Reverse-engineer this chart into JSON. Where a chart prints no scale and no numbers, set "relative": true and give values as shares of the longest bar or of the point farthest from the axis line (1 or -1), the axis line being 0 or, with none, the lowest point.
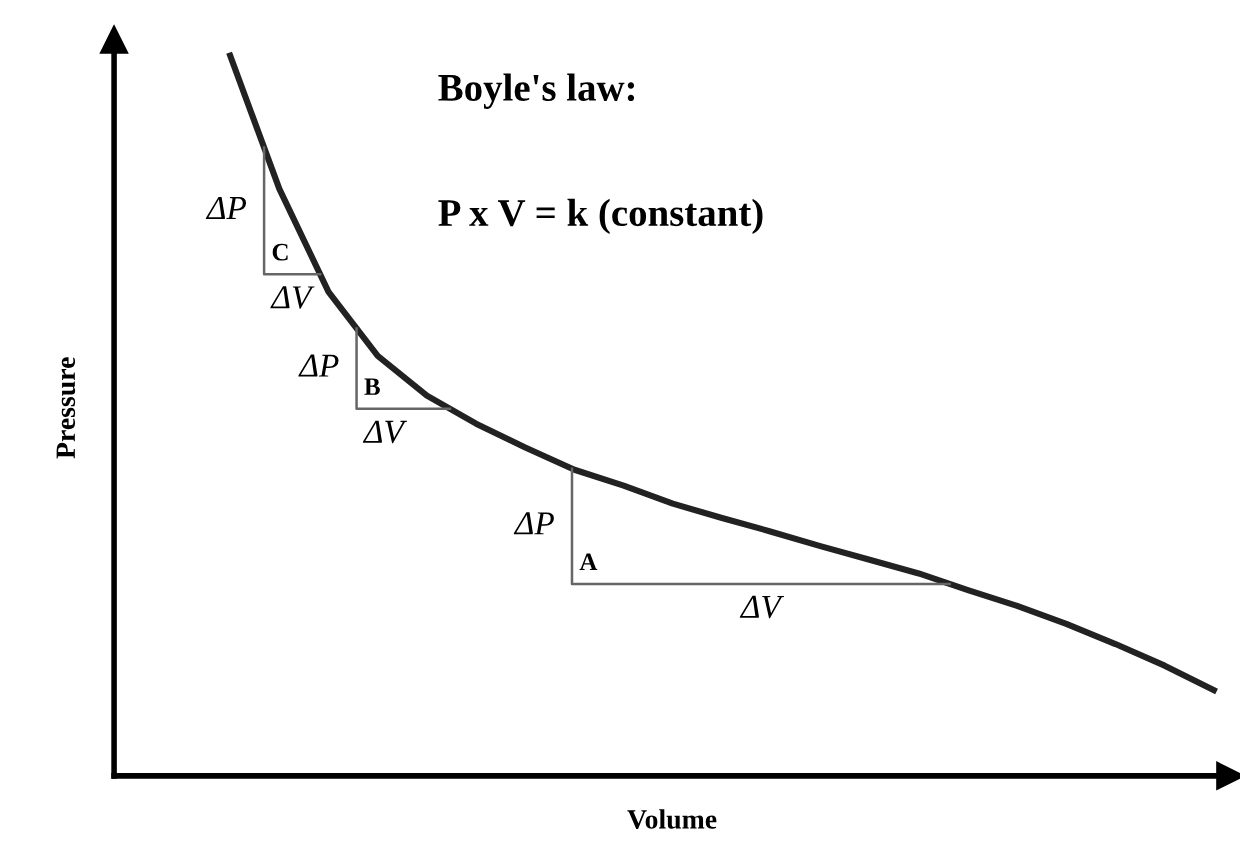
{
  "chart_data": {
    "type": "line",
    "relative": true,
    "title": "Boyle's law:",
    "subtitle": "P x V = k (constant)",
    "xlabel": "Volume",
    "ylabel": "Pressure",
    "categories": [
      null,
      null,
      null,
      null,
      null,
      null,
      null,
      null,
      null,
      null,
      null,
      null,
      null,
      null,
      null,
      null,
      null,
      null,
      null,
      null,
      null
    ],
    "series": [
      {
        "color": "#222222",
        "values": [
          1.0,
          0.815,
          0.672,
          0.583,
          0.528,
          0.489,
          0.456,
          0.425,
          0.403,
          0.378,
          0.358,
          0.339,
          0.319,
          0.3,
          0.281,
          0.258,
          0.236,
          0.211,
          0.183,
          0.153,
          0.119
        ]
      }
    ],
    "annotations": [
      "ΔP",
      "ΔV",
      "C",
      "ΔP",
      "ΔV",
      "B",
      "ΔP",
      "ΔV",
      "A"
    ],
    "marker": "none",
    "line_style": "solid",
    "grid": false,
    "legend": false,
    "tick_labels": false
  }
}
